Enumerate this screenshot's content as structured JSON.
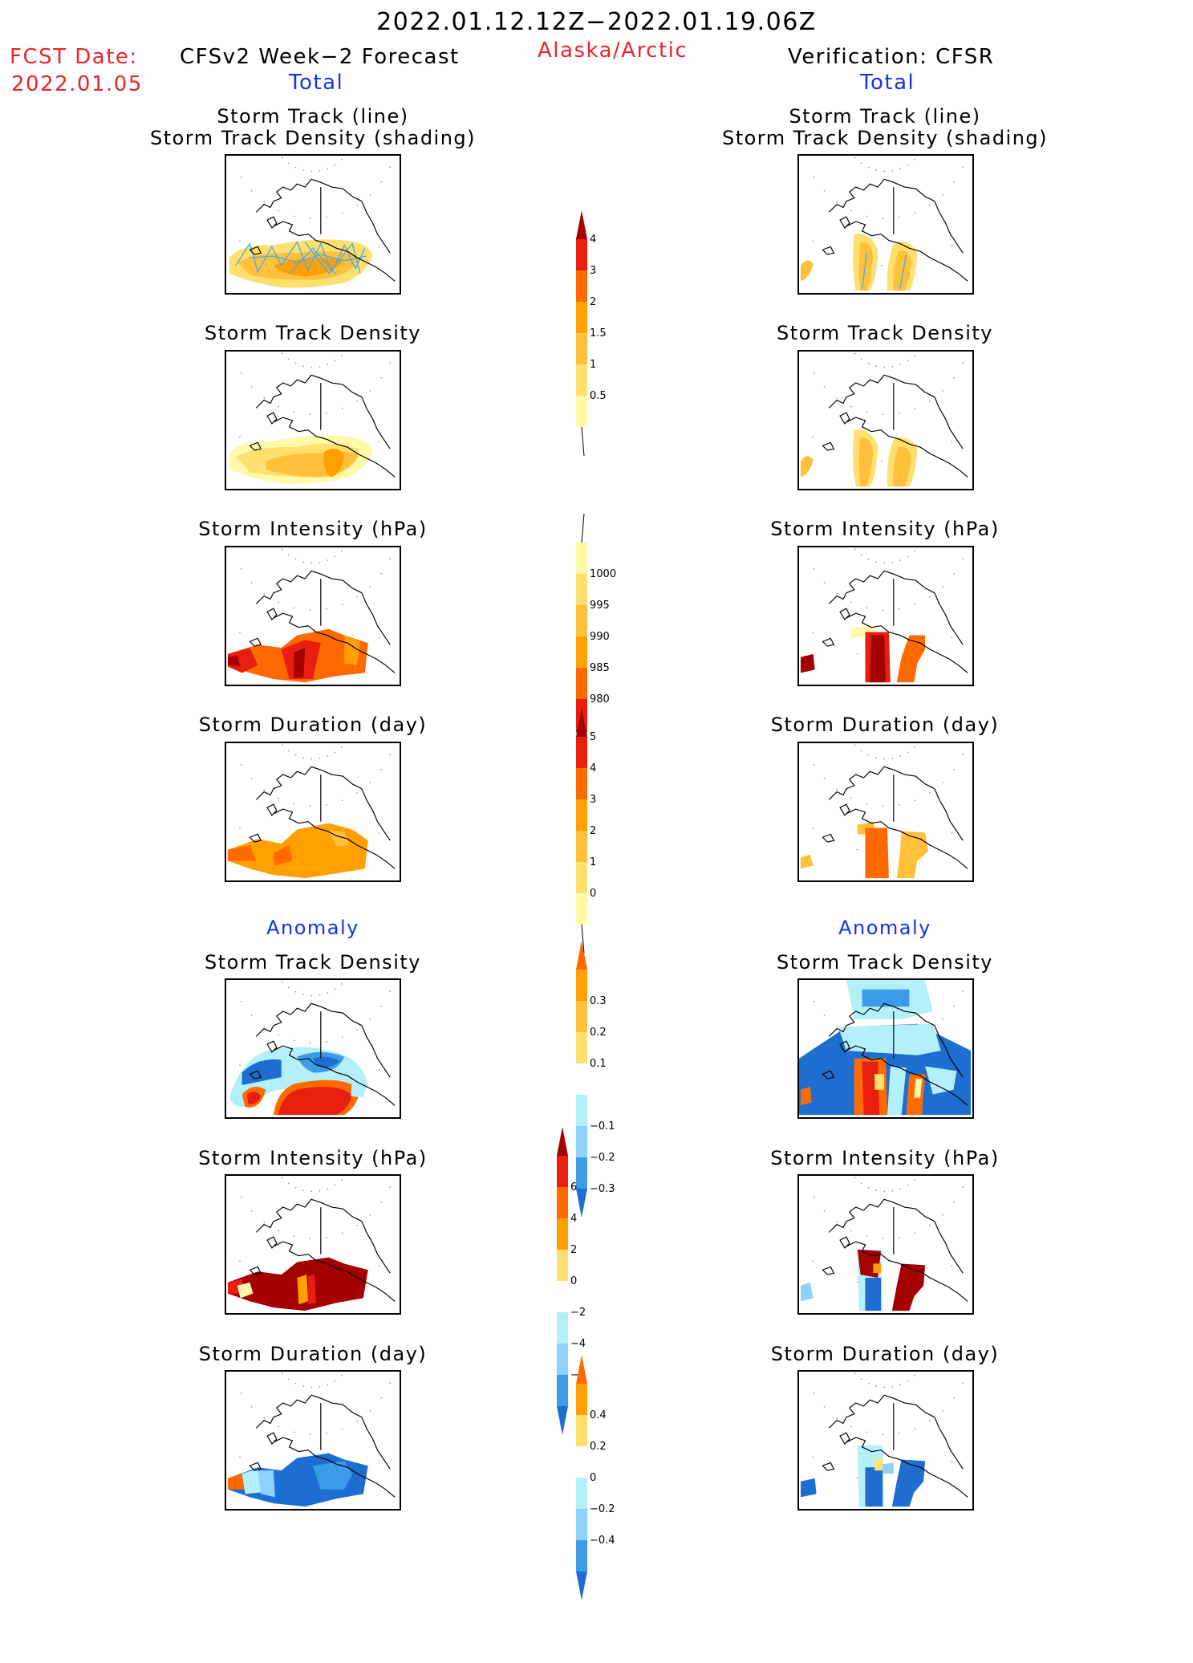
{
  "header": {
    "period": "2022.01.12.12Z−2022.01.19.06Z",
    "fcst_label": "FCST Date:",
    "fcst_date": "2022.01.05",
    "left_title": "CFSv2 Week−2 Forecast",
    "region": "Alaska/Arctic",
    "right_title": "Verification: CFSR",
    "total_left": "Total",
    "total_right": "Total",
    "anomaly_left": "Anomaly",
    "anomaly_right": "Anomaly"
  },
  "panels": {
    "track_title_1": "Storm Track (line)",
    "track_title_2": "Storm Track Density (shading)",
    "density": "Storm Track Density",
    "intensity": "Storm Intensity (hPa)",
    "duration": "Storm Duration (day)"
  },
  "colors": {
    "pale_yellow": "#fffaaa",
    "yellow": "#ffe06e",
    "light_orange": "#ffc03c",
    "orange": "#ffa000",
    "dark_orange": "#ff6a00",
    "red": "#e81e10",
    "dark_red": "#a50000",
    "white": "#ffffff",
    "light_blue": "#b4f0fa",
    "sky_blue": "#8cd2fa",
    "mid_blue": "#3c9be6",
    "blue": "#1e6ed2",
    "dark_blue": "#0a50b4",
    "track_line": "#4aaee8"
  },
  "chart_data": [
    {
      "type": "heatmap",
      "title": "Storm Track Density",
      "colorbar_ticks": [
        "0.5",
        "1",
        "1.5",
        "2",
        "3",
        "4"
      ]
    },
    {
      "type": "heatmap",
      "title": "Storm Intensity (hPa)",
      "colorbar_ticks": [
        "1000",
        "995",
        "990",
        "985",
        "980"
      ]
    },
    {
      "type": "heatmap",
      "title": "Storm Duration (day)",
      "colorbar_ticks": [
        "0",
        "1",
        "2",
        "3",
        "4",
        "5"
      ]
    },
    {
      "type": "heatmap",
      "title": "Storm Track Density",
      "colorbar_ticks": [
        "0.3",
        "0.2",
        "0.1",
        "−0.1",
        "−0.2",
        "−0.3"
      ]
    },
    {
      "type": "heatmap",
      "title": "Storm Intensity (hPa)",
      "colorbar_ticks": [
        "6",
        "4",
        "2",
        "0",
        "−2",
        "−4",
        "−6"
      ]
    },
    {
      "type": "heatmap",
      "title": "Storm Duration (day)",
      "colorbar_ticks": [
        "0.4",
        "0.2",
        "0",
        "−0.2",
        "−0.4"
      ]
    }
  ]
}
